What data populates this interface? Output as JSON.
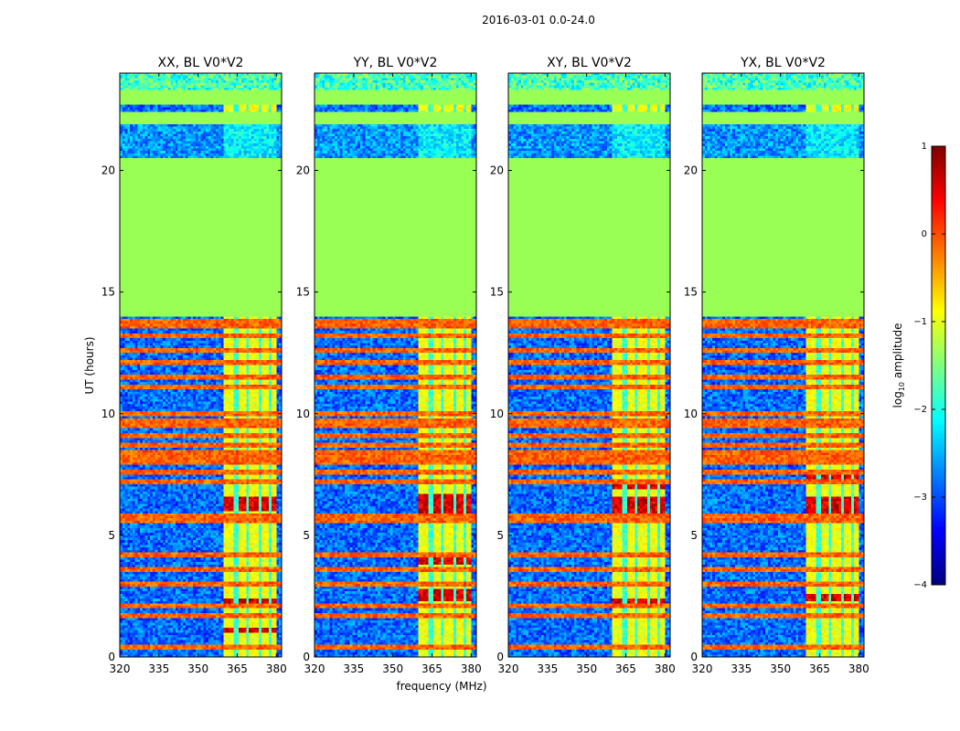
{
  "chart_data": {
    "type": "heatmap",
    "title": "2016-03-01 0.0-24.0",
    "xlabel": "frequency (MHz)",
    "ylabel": "UT (hours)",
    "xlim": [
      320,
      382
    ],
    "ylim": [
      0,
      24
    ],
    "xticks": [
      320,
      335,
      350,
      365,
      380
    ],
    "xtick_labels": [
      "320",
      "335",
      "350",
      "365",
      "380"
    ],
    "yticks": [
      0,
      5,
      10,
      15,
      20
    ],
    "ytick_labels": [
      "0",
      "5",
      "10",
      "15",
      "20"
    ],
    "panels": [
      {
        "title": "XX, BL V0*V2",
        "peak_bands": [
          [
            6.0,
            6.6
          ],
          [
            2.1,
            2.4
          ],
          [
            1.0,
            1.2
          ]
        ]
      },
      {
        "title": "YY, BL V0*V2",
        "peak_bands": [
          [
            5.9,
            6.7
          ],
          [
            2.3,
            2.8
          ],
          [
            3.8,
            4.1
          ]
        ]
      },
      {
        "title": "XY, BL V0*V2",
        "peak_bands": [
          [
            5.9,
            6.6
          ],
          [
            2.1,
            2.4
          ],
          [
            6.9,
            7.1
          ]
        ]
      },
      {
        "title": "YX, BL V0*V2",
        "peak_bands": [
          [
            5.9,
            6.6
          ],
          [
            2.3,
            2.6
          ],
          [
            7.3,
            7.5
          ]
        ]
      }
    ],
    "masked_bands_hours": [
      [
        14.0,
        20.5
      ],
      [
        21.9,
        22.4
      ],
      [
        22.7,
        23.3
      ]
    ],
    "rfi_band_mhz": [
      360,
      380
    ],
    "rfi_channels_mhz": [
      364.5,
      369.0,
      373.5,
      378.0
    ],
    "flagged_rows_hours": [
      0.4,
      1.7,
      2.1,
      3.0,
      3.6,
      4.2,
      5.6,
      5.8,
      7.2,
      7.6,
      8.0,
      8.2,
      8.4,
      8.7,
      9.1,
      9.5,
      9.7,
      10.0,
      11.1,
      11.5,
      12.1,
      12.6,
      13.2,
      13.6,
      13.8
    ],
    "colorbar": {
      "label": "log₁₀ amplitude",
      "label_main": "log",
      "label_sub": "10",
      "label_rest": " amplitude",
      "range": [
        -4,
        1
      ],
      "ticks": [
        1,
        0,
        -1,
        -2,
        -3,
        -4
      ],
      "tick_labels": [
        "1",
        "0",
        "−1",
        "−2",
        "−3",
        "−4"
      ],
      "colormap": "jet",
      "colors": [
        "#00007f",
        "#0000ff",
        "#007fff",
        "#00ffff",
        "#7fff7f",
        "#ffff00",
        "#ff7f00",
        "#ff0000",
        "#7f0000"
      ]
    },
    "masked_color": "#99ff55"
  }
}
